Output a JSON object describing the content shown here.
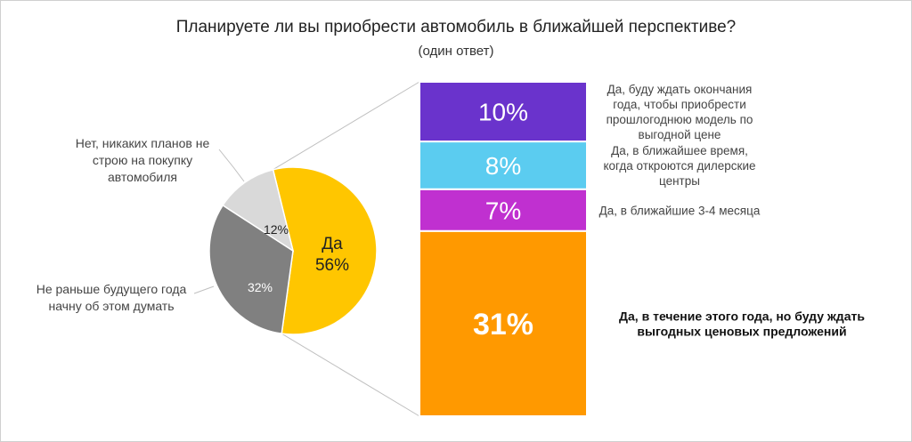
{
  "title": "Планируете ли вы приобрести автомобиль в ближайшей перспективе?",
  "subtitle": "(один ответ)",
  "chart_data": {
    "type": "bar-of-pie",
    "pie": {
      "slices": [
        {
          "label": "Да",
          "value": 56,
          "value_label": "56%",
          "color": "#FFC600"
        },
        {
          "label": "Не раньше будущего года начну об этом думать",
          "value": 32,
          "value_label": "32%",
          "color": "#808080"
        },
        {
          "label": "Нет, никаких планов не строю на покупку автомобиля",
          "value": 12,
          "value_label": "12%",
          "color": "#D9D9D9"
        }
      ]
    },
    "bar": {
      "segments": [
        {
          "label": "Да, буду ждать окончания года, чтобы приобрести прошлогоднюю модель по выгодной цене",
          "value": 10,
          "value_label": "10%",
          "color": "#6A33CC"
        },
        {
          "label": "Да, в ближайшее время, когда откроются дилерские центры",
          "value": 8,
          "value_label": "8%",
          "color": "#5BCCF0"
        },
        {
          "label": "Да, в ближайшие 3-4 месяца",
          "value": 7,
          "value_label": "7%",
          "color": "#C030D0"
        },
        {
          "label": "Да, в течение этого года, но буду ждать выгодных ценовых предложений",
          "value": 31,
          "value_label": "31%",
          "color": "#FF9900",
          "emphasis": true
        }
      ]
    },
    "pie_label_lines": {
      "pie_32": "Не раньше будущего года\nначну об этом думать",
      "pie_12": "Нет, никаких планов не\nстрою на покупку\nавтомобиля"
    },
    "bar_label_lines": [
      "Да, буду ждать окончания\nгода, чтобы приобрести\nпрошлогоднюю модель по\nвыгодной цене",
      "Да, в ближайшее время,\nкогда откроются дилерские\nцентры",
      "Да, в ближайшие 3-4 месяца",
      "Да, в течение этого года, но буду ждать\nвыгодных ценовых предложений"
    ]
  }
}
